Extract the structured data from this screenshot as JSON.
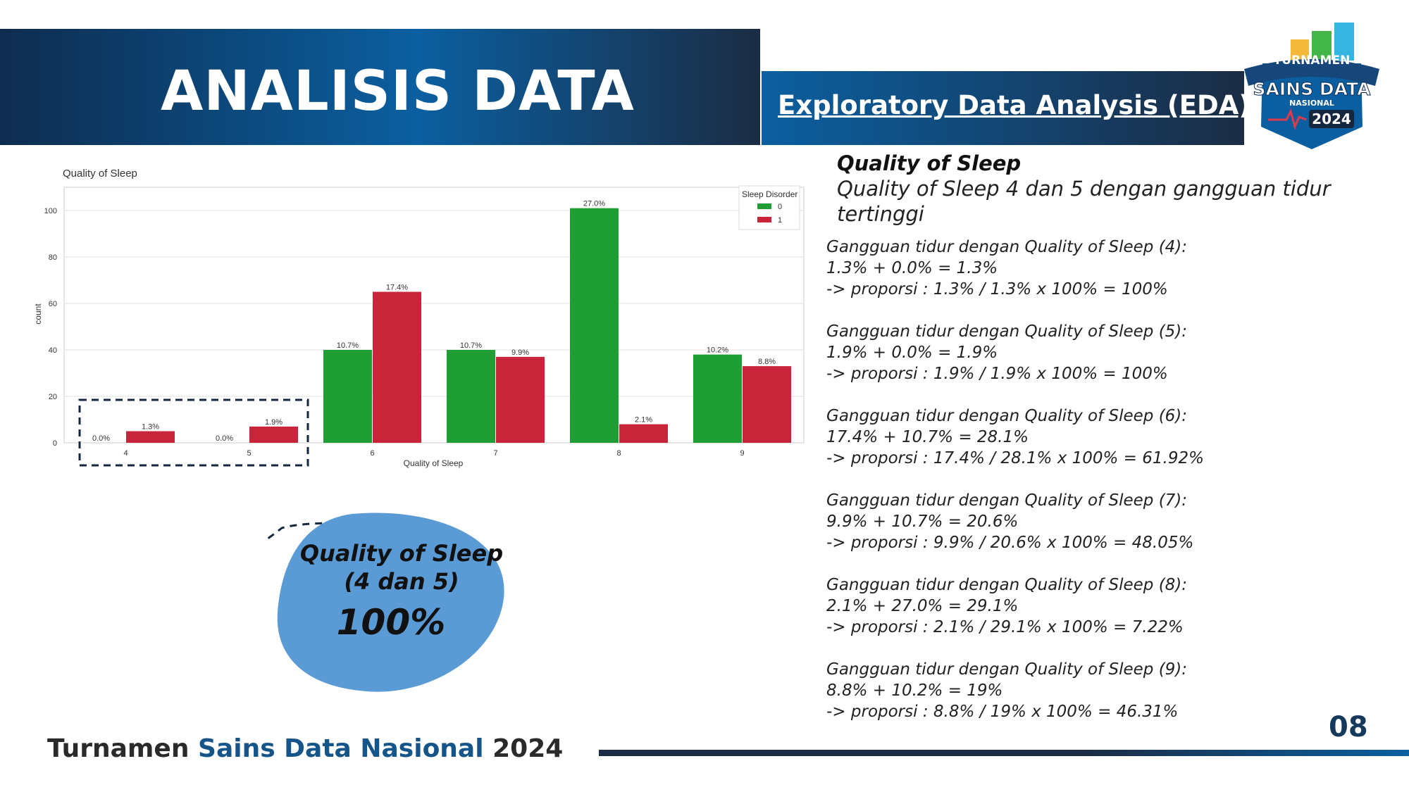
{
  "header": {
    "title": "ANALISIS DATA",
    "subtitle": "Exploratory Data Analysis (EDA)"
  },
  "logo": {
    "line1": "TURNAMEN",
    "line2": "SAINS DATA",
    "line3": "NASIONAL",
    "year": "2024",
    "colors": [
      "#f4b93a",
      "#43b649",
      "#35b6e0",
      "#0b5fa0"
    ]
  },
  "chart_data": {
    "type": "bar",
    "title": "Quality of Sleep",
    "xlabel": "Quality of Sleep",
    "ylabel": "count",
    "categories": [
      "4",
      "5",
      "6",
      "7",
      "8",
      "9"
    ],
    "ylim": [
      0,
      110
    ],
    "yticks": [
      0,
      20,
      40,
      60,
      80,
      100
    ],
    "grid": true,
    "legend": {
      "title": "Sleep Disorder",
      "placement": "top-right"
    },
    "series": [
      {
        "name": "0",
        "color": "#1e9e35",
        "values": [
          0,
          0,
          40,
          40,
          101,
          38
        ],
        "labels": [
          "0.0%",
          "0.0%",
          "10.7%",
          "10.7%",
          "27.0%",
          "10.2%"
        ]
      },
      {
        "name": "1",
        "color": "#c8253a",
        "values": [
          5,
          7,
          65,
          37,
          8,
          33
        ],
        "labels": [
          "1.3%",
          "1.9%",
          "17.4%",
          "9.9%",
          "2.1%",
          "8.8%"
        ]
      }
    ]
  },
  "callout": {
    "label": "Quality of Sleep (4 dan 5)",
    "value": "100%",
    "color": "#5b9bd5"
  },
  "panel": {
    "title": "Quality of Sleep",
    "subtitle": "Quality of Sleep 4 dan 5 dengan gangguan tidur tertinggi",
    "blocks": [
      {
        "l1": "Gangguan tidur dengan Quality of Sleep (4):",
        "l2": "1.3% + 0.0% = 1.3%",
        "l3": "-> proporsi : 1.3% / 1.3% x 100% = 100%"
      },
      {
        "l1": "Gangguan tidur dengan Quality of Sleep (5):",
        "l2": "1.9% + 0.0% = 1.9%",
        "l3": "-> proporsi : 1.9% / 1.9% x 100% = 100%"
      },
      {
        "l1": "Gangguan tidur dengan Quality of Sleep (6):",
        "l2": "17.4% + 10.7% = 28.1%",
        "l3": "-> proporsi : 17.4% / 28.1% x 100% = 61.92%"
      },
      {
        "l1": "Gangguan tidur dengan Quality of Sleep (7):",
        "l2": "9.9% + 10.7% = 20.6%",
        "l3": "-> proporsi : 9.9% / 20.6% x 100% = 48.05%"
      },
      {
        "l1": "Gangguan tidur dengan Quality of Sleep (8):",
        "l2": "2.1% + 27.0% = 29.1%",
        "l3": "-> proporsi : 2.1% / 29.1% x 100% = 7.22%"
      },
      {
        "l1": "Gangguan tidur dengan Quality of Sleep (9):",
        "l2": "8.8% + 10.2% = 19%",
        "l3": "-> proporsi : 8.8% / 19% x 100% = 46.31%"
      }
    ]
  },
  "footer": {
    "text_part1": "Turnamen",
    "text_part2": "Sains Data Nasional",
    "text_part3": "2024",
    "page_number": "08"
  }
}
